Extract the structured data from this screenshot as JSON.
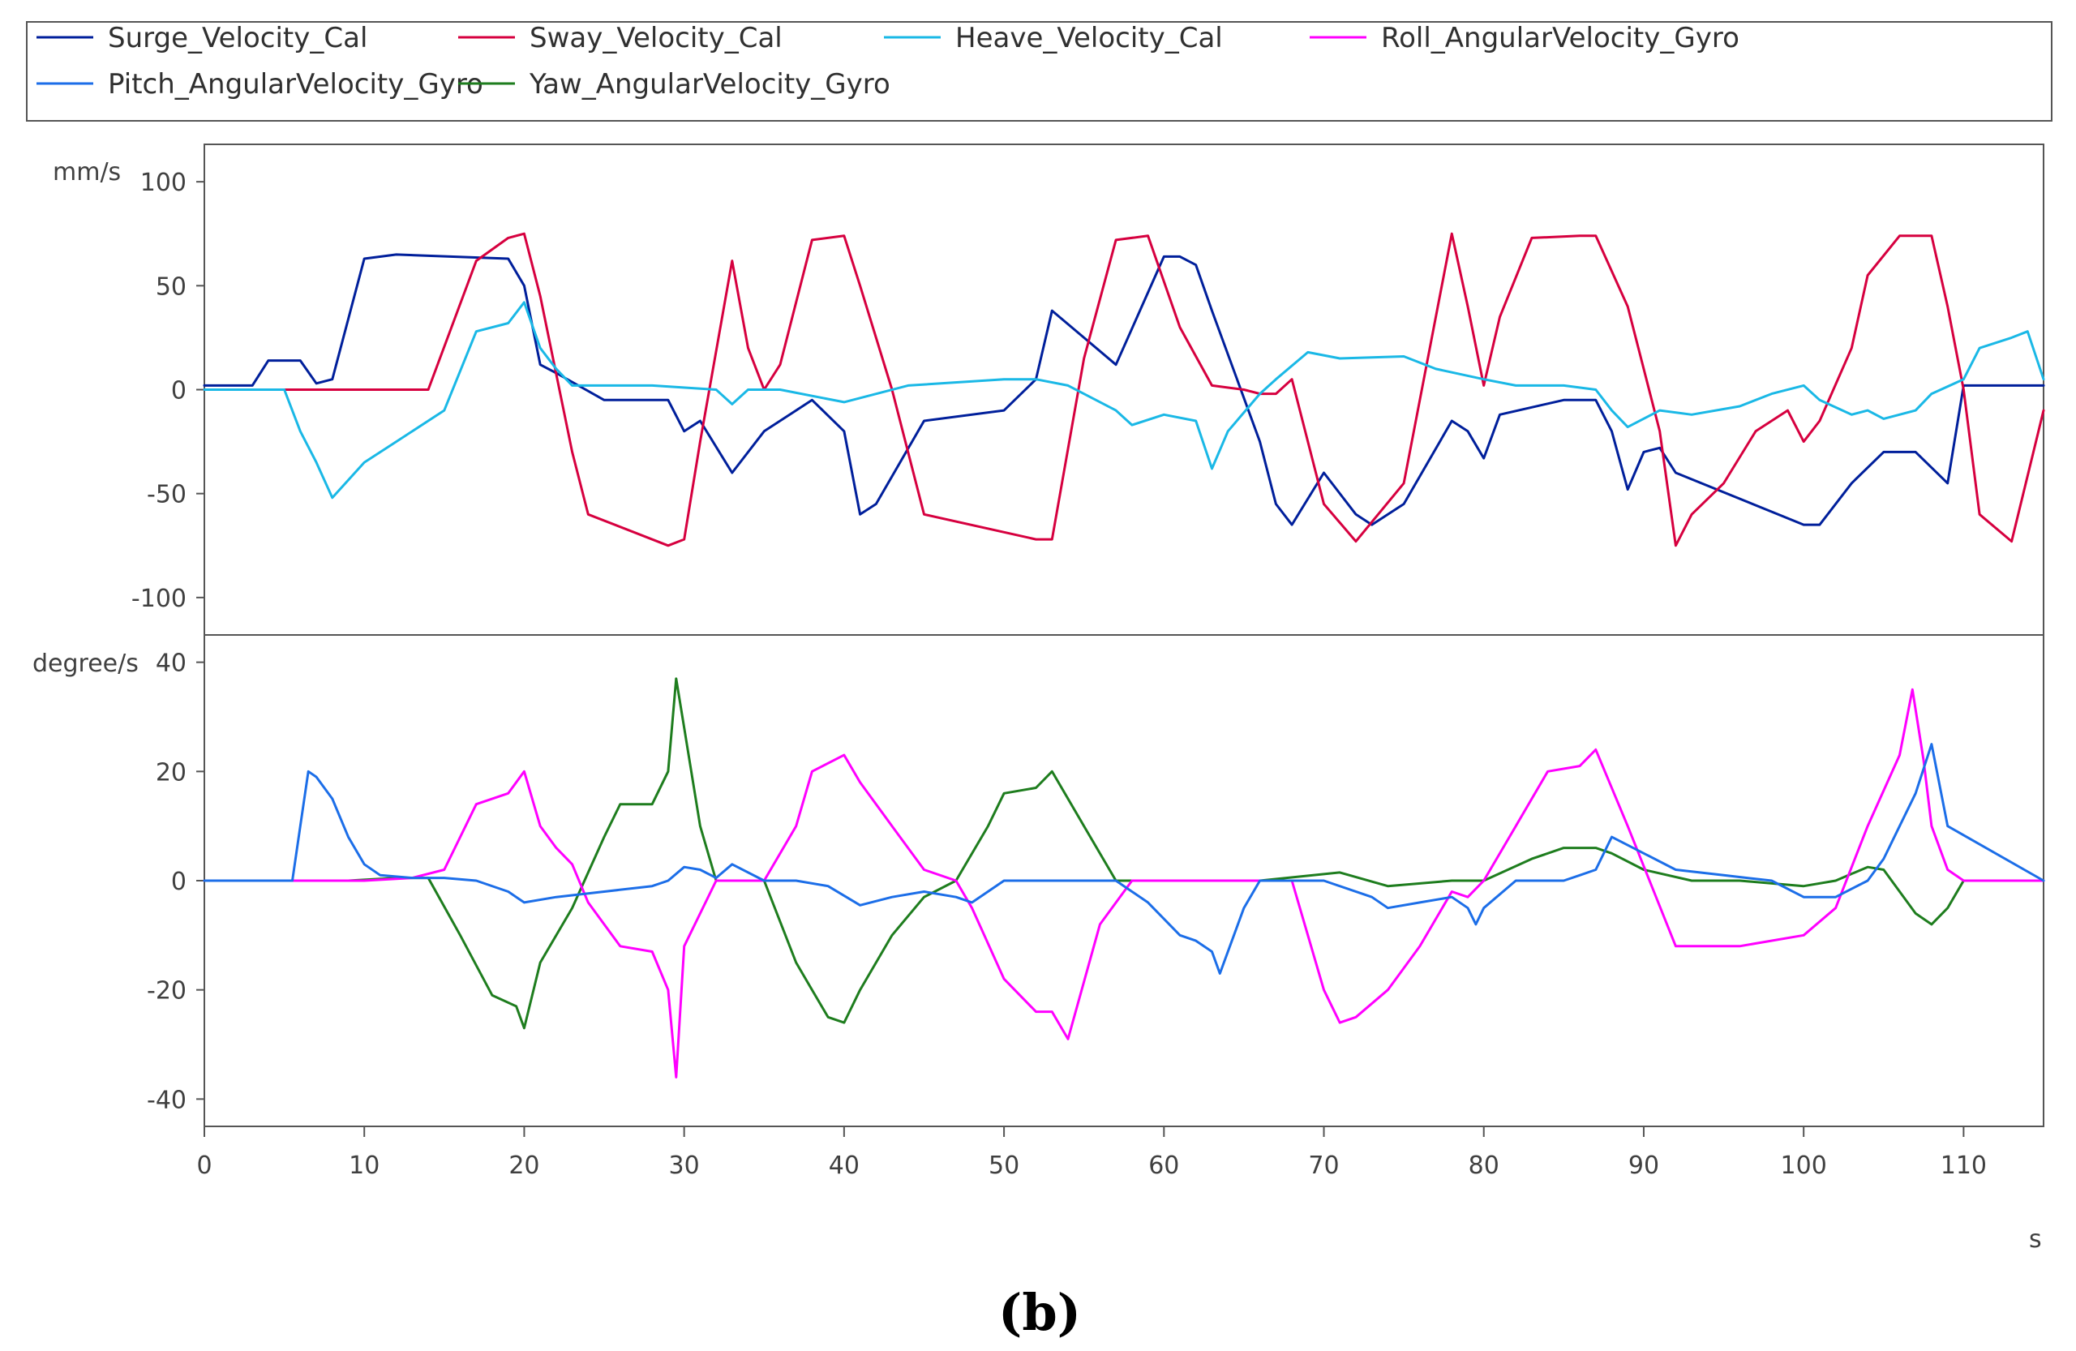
{
  "caption": "(b)",
  "chart_data": [
    {
      "type": "line",
      "panel": "top",
      "ylabel": "mm/s",
      "xlabel": "s",
      "xlim": [
        0,
        115
      ],
      "ylim": [
        -118,
        118
      ],
      "yticks": [
        100,
        50,
        0,
        -50,
        -100
      ],
      "series": [
        {
          "name": "Surge_Velocity_Cal",
          "color": "#001f9b",
          "x": [
            0,
            3,
            4,
            6,
            7,
            8,
            10,
            12,
            19,
            20,
            21,
            22,
            25,
            29,
            30,
            31,
            33,
            35,
            38,
            40,
            41,
            42,
            45,
            50,
            52,
            53,
            55,
            57,
            60,
            61,
            62,
            63,
            66,
            67,
            68,
            70,
            72,
            73,
            75,
            78,
            79,
            80,
            81,
            85,
            87,
            88,
            89,
            90,
            91,
            92,
            100,
            101,
            103,
            105,
            106,
            107,
            109,
            110,
            115
          ],
          "y": [
            2,
            2,
            14,
            14,
            3,
            5,
            63,
            65,
            63,
            50,
            12,
            8,
            -5,
            -5,
            -20,
            -15,
            -40,
            -20,
            -5,
            -20,
            -60,
            -55,
            -15,
            -10,
            5,
            38,
            25,
            12,
            64,
            64,
            60,
            38,
            -25,
            -55,
            -65,
            -40,
            -60,
            -65,
            -55,
            -15,
            -20,
            -33,
            -12,
            -5,
            -5,
            -20,
            -48,
            -30,
            -28,
            -40,
            -65,
            -65,
            -45,
            -30,
            -30,
            -30,
            -45,
            2,
            2
          ]
        },
        {
          "name": "Sway_Velocity_Cal",
          "color": "#d6003f",
          "x": [
            0,
            14,
            17,
            19,
            20,
            21,
            23,
            24,
            29,
            30,
            31,
            33,
            34,
            35,
            36,
            38,
            40,
            41,
            43,
            45,
            52,
            53,
            55,
            57,
            59,
            61,
            63,
            65,
            66,
            67,
            68,
            70,
            72,
            75,
            78,
            79,
            80,
            81,
            83,
            86,
            87,
            89,
            91,
            92,
            93,
            95,
            97,
            99,
            100,
            101,
            103,
            104,
            106,
            108,
            109,
            110,
            111,
            113,
            115
          ],
          "y": [
            0,
            0,
            62,
            73,
            75,
            45,
            -30,
            -60,
            -75,
            -72,
            -25,
            62,
            20,
            0,
            12,
            72,
            74,
            50,
            0,
            -60,
            -72,
            -72,
            15,
            72,
            74,
            30,
            2,
            0,
            -2,
            -2,
            5,
            -55,
            -73,
            -45,
            75,
            40,
            2,
            35,
            73,
            74,
            74,
            40,
            -20,
            -75,
            -60,
            -45,
            -20,
            -10,
            -25,
            -15,
            20,
            55,
            74,
            74,
            40,
            0,
            -60,
            -73,
            -10
          ]
        },
        {
          "name": "Heave_Velocity_Cal",
          "color": "#1ab8e6",
          "x": [
            0,
            5,
            6,
            7,
            8,
            10,
            12,
            15,
            17,
            19,
            20,
            21,
            22,
            23,
            24,
            28,
            32,
            33,
            34,
            36,
            40,
            44,
            50,
            52,
            54,
            57,
            58,
            60,
            62,
            63,
            64,
            66,
            67,
            69,
            71,
            75,
            77,
            80,
            82,
            85,
            87,
            88,
            89,
            91,
            93,
            96,
            98,
            100,
            101,
            103,
            104,
            105,
            107,
            108,
            110,
            111,
            113,
            114,
            115
          ],
          "y": [
            0,
            0,
            -20,
            -35,
            -52,
            -35,
            -25,
            -10,
            28,
            32,
            42,
            20,
            10,
            2,
            2,
            2,
            0,
            -7,
            0,
            0,
            -6,
            2,
            5,
            5,
            2,
            -10,
            -17,
            -12,
            -15,
            -38,
            -20,
            -2,
            5,
            18,
            15,
            16,
            10,
            5,
            2,
            2,
            0,
            -10,
            -18,
            -10,
            -12,
            -8,
            -2,
            2,
            -5,
            -12,
            -10,
            -14,
            -10,
            -2,
            5,
            20,
            25,
            28,
            5
          ]
        }
      ]
    },
    {
      "type": "line",
      "panel": "bottom",
      "ylabel": "degree/s",
      "xlabel": "s",
      "xlim": [
        0,
        115
      ],
      "ylim": [
        -45,
        45
      ],
      "yticks": [
        40,
        20,
        0,
        -20,
        -40
      ],
      "xticks": [
        0,
        10,
        20,
        30,
        40,
        50,
        60,
        70,
        80,
        90,
        100,
        110
      ],
      "series": [
        {
          "name": "Yaw_AngularVelocity_Gyro",
          "color": "#1e7d1e",
          "x": [
            0,
            7,
            9,
            12,
            14,
            16,
            18,
            19.5,
            20,
            21,
            23,
            25,
            26,
            28,
            29,
            29.5,
            30,
            31,
            32,
            35,
            37,
            38,
            39,
            40,
            41,
            43,
            45,
            47,
            49,
            50,
            52,
            53,
            55,
            57,
            60,
            66,
            71,
            74,
            78,
            80,
            83,
            85,
            87,
            88,
            90,
            93,
            96,
            100,
            102,
            104,
            105,
            107,
            108,
            109,
            110,
            115
          ],
          "y": [
            0,
            0,
            0,
            0.5,
            0.5,
            -10,
            -21,
            -23,
            -27,
            -15,
            -5,
            8,
            14,
            14,
            20,
            37,
            28,
            10,
            0,
            0,
            -15,
            -20,
            -25,
            -26,
            -20,
            -10,
            -3,
            0,
            10,
            16,
            17,
            20,
            10,
            0,
            0,
            0,
            1.5,
            -1,
            0,
            0,
            4,
            6,
            6,
            5,
            2,
            0,
            0,
            -1,
            0,
            2.5,
            2,
            -6,
            -8,
            -5,
            0,
            0
          ]
        },
        {
          "name": "Roll_AngularVelocity_Gyro",
          "color": "#ff00ff",
          "x": [
            0,
            10,
            13,
            15,
            17,
            19,
            20,
            21,
            22,
            23,
            24,
            26,
            28,
            29,
            29.5,
            30,
            32,
            35,
            37,
            38,
            40,
            41,
            43,
            45,
            47,
            48,
            50,
            52,
            53,
            54,
            56,
            58,
            68,
            70,
            71,
            72,
            74,
            76,
            78,
            79,
            80,
            82,
            84,
            86,
            87,
            89,
            92,
            95,
            96,
            100,
            102,
            104,
            106,
            106.8,
            107.5,
            108,
            109,
            110,
            115
          ],
          "y": [
            0,
            0,
            0.5,
            2,
            14,
            16,
            20,
            10,
            6,
            3,
            -4,
            -12,
            -13,
            -20,
            -36,
            -12,
            0,
            0,
            10,
            20,
            23,
            18,
            10,
            2,
            0,
            -5,
            -18,
            -24,
            -24,
            -29,
            -8,
            0,
            0,
            -20,
            -26,
            -25,
            -20,
            -12,
            -2,
            -3,
            0,
            10,
            20,
            21,
            24,
            10,
            -12,
            -12,
            -12,
            -10,
            -5,
            10,
            23,
            35,
            22,
            10,
            2,
            0,
            0
          ]
        },
        {
          "name": "Pitch_AngularVelocity_Gyro",
          "color": "#1c6ee8",
          "x": [
            0,
            5.5,
            6,
            6.5,
            7,
            8,
            9,
            10,
            11,
            13,
            15,
            17,
            19,
            20,
            22,
            25,
            28,
            29,
            30,
            31,
            32,
            33,
            35,
            37,
            39,
            41,
            43,
            45,
            47,
            48,
            50,
            55,
            57,
            59,
            61,
            62,
            63,
            63.5,
            65,
            66,
            70,
            73,
            74,
            76,
            78,
            79,
            79.5,
            80,
            82,
            85,
            86,
            87,
            88,
            90,
            92,
            95,
            98,
            100,
            102,
            104,
            105,
            106,
            107,
            108,
            109,
            115
          ],
          "y": [
            0,
            0,
            10,
            20,
            19,
            15,
            8,
            3,
            1,
            0.5,
            0.5,
            0,
            -2,
            -4,
            -3,
            -2,
            -1,
            0,
            2.5,
            2,
            0.5,
            3,
            0,
            0,
            -1,
            -4.5,
            -3,
            -2,
            -3,
            -4,
            0,
            0,
            0,
            -4,
            -10,
            -11,
            -13,
            -17,
            -5,
            0,
            0,
            -3,
            -5,
            -4,
            -3,
            -5,
            -8,
            -5,
            0,
            0,
            1,
            2,
            8,
            5,
            2,
            1,
            0,
            -3,
            -3,
            0,
            4,
            10,
            16,
            25,
            10,
            0
          ]
        }
      ]
    }
  ],
  "legend": [
    {
      "name": "Surge_Velocity_Cal",
      "color": "#001f9b"
    },
    {
      "name": "Sway_Velocity_Cal",
      "color": "#d6003f"
    },
    {
      "name": "Heave_Velocity_Cal",
      "color": "#1ab8e6"
    },
    {
      "name": "Roll_AngularVelocity_Gyro",
      "color": "#ff00ff"
    },
    {
      "name": "Pitch_AngularVelocity_Gyro",
      "color": "#1c6ee8"
    },
    {
      "name": "Yaw_AngularVelocity_Gyro",
      "color": "#1e7d1e"
    }
  ]
}
